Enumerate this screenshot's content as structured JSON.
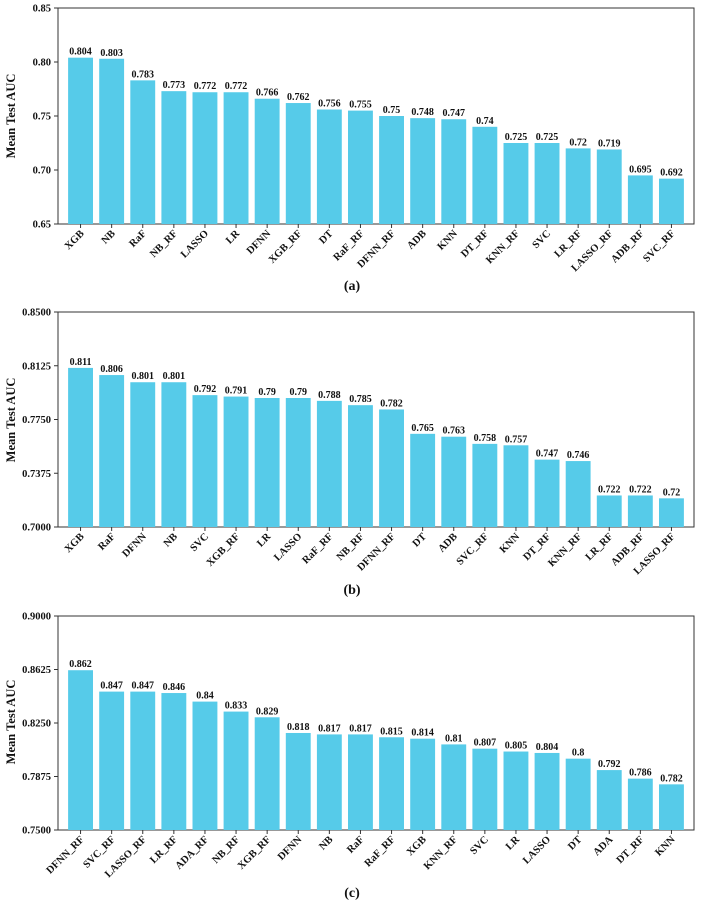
{
  "chart_data": [
    {
      "type": "bar",
      "caption": "(a)",
      "ylabel": "Mean Test AUC",
      "xlabel": "",
      "ylim": [
        0.65,
        0.85
      ],
      "yticks": [
        "0.65",
        "0.70",
        "0.75",
        "0.80",
        "0.85"
      ],
      "bar_color": "#56cbe9",
      "categories": [
        "XGB",
        "NB",
        "RaF",
        "NB_RF",
        "LASSO",
        "LR",
        "DFNN",
        "XGB_RF",
        "DT",
        "RaF_RF",
        "DFNN_RF",
        "ADB",
        "KNN",
        "DT_RF",
        "KNN_RF",
        "SVC",
        "LR_RF",
        "LASSO_RF",
        "ADB_RF",
        "SVC_RF"
      ],
      "values": [
        0.804,
        0.803,
        0.783,
        0.773,
        0.772,
        0.772,
        0.766,
        0.762,
        0.756,
        0.755,
        0.75,
        0.748,
        0.747,
        0.74,
        0.725,
        0.725,
        0.72,
        0.719,
        0.695,
        0.692
      ],
      "value_labels": [
        "0.804",
        "0.803",
        "0.783",
        "0.773",
        "0.772",
        "0.772",
        "0.766",
        "0.762",
        "0.756",
        "0.755",
        "0.75",
        "0.748",
        "0.747",
        "0.74",
        "0.725",
        "0.725",
        "0.72",
        "0.719",
        "0.695",
        "0.692"
      ]
    },
    {
      "type": "bar",
      "caption": "(b)",
      "ylabel": "Mean Test AUC",
      "xlabel": "",
      "ylim": [
        0.7,
        0.85
      ],
      "yticks": [
        "0.7000",
        "0.7375",
        "0.7750",
        "0.8125",
        "0.8500"
      ],
      "bar_color": "#56cbe9",
      "categories": [
        "XGB",
        "RaF",
        "DFNN",
        "NB",
        "SVC",
        "XGB_RF",
        "LR",
        "LASSO",
        "RaF_RF",
        "NB_RF",
        "DFNN_RF",
        "DT",
        "ADB",
        "SVC_RF",
        "KNN",
        "DT_RF",
        "KNN_RF",
        "LR_RF",
        "ADB_RF",
        "LASSO_RF"
      ],
      "values": [
        0.811,
        0.806,
        0.801,
        0.801,
        0.792,
        0.791,
        0.79,
        0.79,
        0.788,
        0.785,
        0.782,
        0.765,
        0.763,
        0.758,
        0.757,
        0.747,
        0.746,
        0.722,
        0.722,
        0.72
      ],
      "value_labels": [
        "0.811",
        "0.806",
        "0.801",
        "0.801",
        "0.792",
        "0.791",
        "0.79",
        "0.79",
        "0.788",
        "0.785",
        "0.782",
        "0.765",
        "0.763",
        "0.758",
        "0.757",
        "0.747",
        "0.746",
        "0.722",
        "0.722",
        "0.72"
      ]
    },
    {
      "type": "bar",
      "caption": "(c)",
      "ylabel": "Mean Test AUC",
      "xlabel": "",
      "ylim": [
        0.75,
        0.9
      ],
      "yticks": [
        "0.7500",
        "0.7875",
        "0.8250",
        "0.8625",
        "0.9000"
      ],
      "bar_color": "#56cbe9",
      "categories": [
        "DFNN_RF",
        "SVC_RF",
        "LASSO_RF",
        "LR_RF",
        "ADA_RF",
        "NB_RF",
        "XGB_RF",
        "DFNN",
        "NB",
        "RaF",
        "RaF_RF",
        "XGB",
        "KNN_RF",
        "SVC",
        "LR",
        "LASSO",
        "DT",
        "ADA",
        "DT_RF",
        "KNN"
      ],
      "values": [
        0.862,
        0.847,
        0.847,
        0.846,
        0.84,
        0.833,
        0.829,
        0.818,
        0.817,
        0.817,
        0.815,
        0.814,
        0.81,
        0.807,
        0.805,
        0.804,
        0.8,
        0.792,
        0.786,
        0.782
      ],
      "value_labels": [
        "0.862",
        "0.847",
        "0.847",
        "0.846",
        "0.84",
        "0.833",
        "0.829",
        "0.818",
        "0.817",
        "0.817",
        "0.815",
        "0.814",
        "0.81",
        "0.807",
        "0.805",
        "0.804",
        "0.8",
        "0.792",
        "0.786",
        "0.782"
      ]
    }
  ]
}
